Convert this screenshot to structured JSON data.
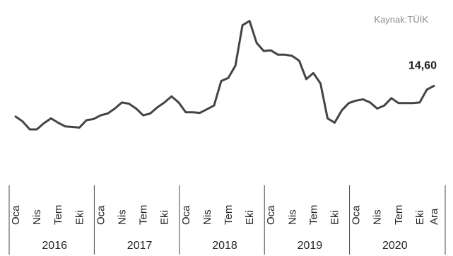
{
  "chart_data": {
    "type": "line",
    "title": "",
    "xlabel": "",
    "ylabel": "",
    "source_note": "Kaynak:TÜİK",
    "last_value_label": "14,60",
    "month_ticks": [
      "Oca",
      "Nis",
      "Tem",
      "Eki",
      "Oca",
      "Nis",
      "Tem",
      "Eki",
      "Oca",
      "Nis",
      "Tem",
      "Eki",
      "Oca",
      "Nis",
      "Tem",
      "Eki",
      "Oca",
      "Nis",
      "Tem",
      "Eki",
      "Ara"
    ],
    "years": [
      "2016",
      "2017",
      "2018",
      "2019",
      "2020"
    ],
    "grid": false,
    "legend": "none",
    "ylim": [
      6,
      27
    ],
    "series": [
      {
        "x": [
          "2016-01",
          "2016-02",
          "2016-03",
          "2016-04",
          "2016-05",
          "2016-06",
          "2016-07",
          "2016-08",
          "2016-09",
          "2016-10",
          "2016-11",
          "2016-12",
          "2017-01",
          "2017-02",
          "2017-03",
          "2017-04",
          "2017-05",
          "2017-06",
          "2017-07",
          "2017-08",
          "2017-09",
          "2017-10",
          "2017-11",
          "2017-12",
          "2018-01",
          "2018-02",
          "2018-03",
          "2018-04",
          "2018-05",
          "2018-06",
          "2018-07",
          "2018-08",
          "2018-09",
          "2018-10",
          "2018-11",
          "2018-12",
          "2019-01",
          "2019-02",
          "2019-03",
          "2019-04",
          "2019-05",
          "2019-06",
          "2019-07",
          "2019-08",
          "2019-09",
          "2019-10",
          "2019-11",
          "2019-12",
          "2020-01",
          "2020-02",
          "2020-03",
          "2020-04",
          "2020-05",
          "2020-06",
          "2020-07",
          "2020-08",
          "2020-09",
          "2020-10",
          "2020-11",
          "2020-12"
        ],
        "values": [
          9.6,
          8.8,
          7.5,
          7.5,
          8.5,
          9.3,
          8.6,
          8.0,
          7.9,
          7.8,
          9.0,
          9.2,
          9.8,
          10.1,
          10.9,
          11.9,
          11.7,
          10.9,
          9.8,
          10.1,
          11.1,
          11.9,
          12.9,
          11.9,
          10.3,
          10.3,
          10.2,
          10.8,
          11.4,
          15.4,
          15.9,
          17.9,
          24.5,
          25.2,
          21.6,
          20.3,
          20.4,
          19.7,
          19.7,
          19.5,
          18.7,
          15.7,
          16.7,
          15.0,
          9.3,
          8.6,
          10.6,
          11.8,
          12.2,
          12.4,
          11.9,
          10.9,
          11.4,
          12.6,
          11.8,
          11.8,
          11.8,
          11.9,
          14.0,
          14.6
        ]
      }
    ]
  }
}
